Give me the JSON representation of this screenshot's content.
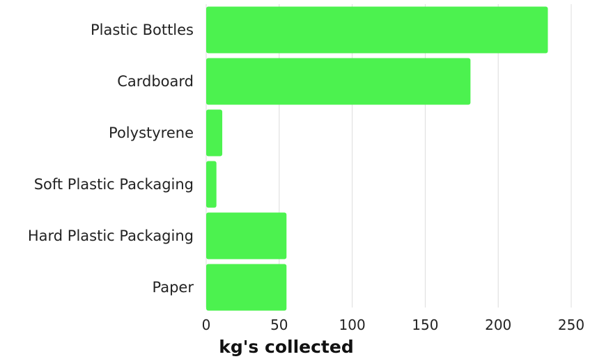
{
  "chart_data": {
    "type": "bar",
    "orientation": "horizontal",
    "categories": [
      "Plastic Bottles",
      "Cardboard",
      "Polystyrene",
      "Soft Plastic Packaging",
      "Hard Plastic Packaging",
      "Paper"
    ],
    "values": [
      234,
      181,
      11,
      7,
      55,
      55
    ],
    "xlabel": "kg's collected",
    "ylabel": "",
    "xlim": [
      0,
      250
    ],
    "xticks": [
      0,
      50,
      100,
      150,
      200,
      250
    ],
    "grid": true,
    "bar_color": "#4cf24f"
  }
}
